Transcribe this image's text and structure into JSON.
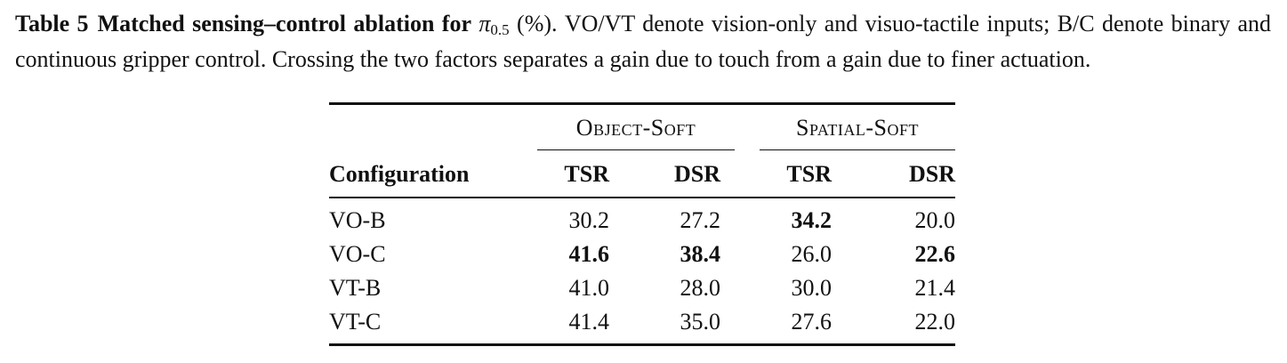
{
  "caption": {
    "label": "Table 5",
    "title": "Matched sensing–control ablation for",
    "math_symbol": "π",
    "math_sub": "0.5",
    "after_math": " (%). VO/VT denote vision-only and visuo-tactile inputs; B/C denote binary and continuous gripper control. Crossing the two factors separates a gain due to touch from a gain due to finer actuation."
  },
  "table": {
    "groups": [
      "Object-Soft",
      "Spatial-Soft"
    ],
    "headers": {
      "config": "Configuration",
      "cols": [
        "TSR",
        "DSR",
        "TSR",
        "DSR"
      ]
    },
    "rows": [
      {
        "label": "VO-B",
        "values": [
          "30.2",
          "27.2",
          "34.2",
          "20.0"
        ],
        "bold": [
          false,
          false,
          true,
          false
        ]
      },
      {
        "label": "VO-C",
        "values": [
          "41.6",
          "38.4",
          "26.0",
          "22.6"
        ],
        "bold": [
          true,
          true,
          false,
          true
        ]
      },
      {
        "label": "VT-B",
        "values": [
          "41.0",
          "28.0",
          "30.0",
          "21.4"
        ],
        "bold": [
          false,
          false,
          false,
          false
        ]
      },
      {
        "label": "VT-C",
        "values": [
          "41.4",
          "35.0",
          "27.6",
          "22.0"
        ],
        "bold": [
          false,
          false,
          false,
          false
        ]
      }
    ]
  }
}
